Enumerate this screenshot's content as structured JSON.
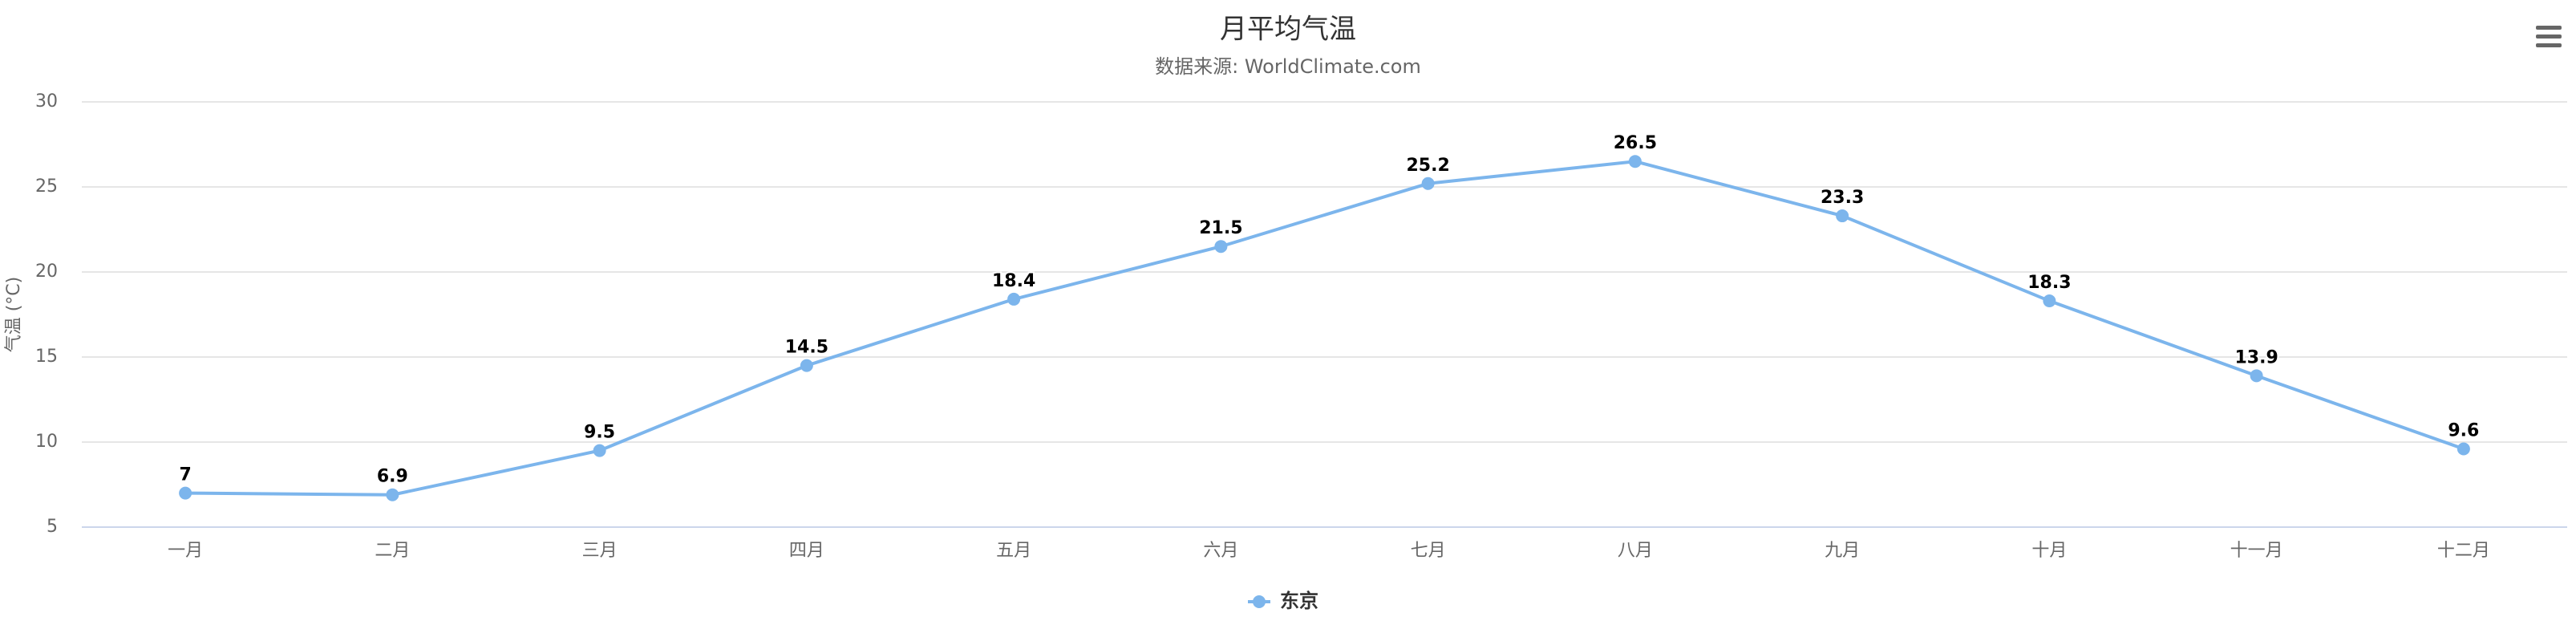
{
  "chart_data": {
    "type": "line",
    "title": "月平均气温",
    "subtitle": "数据来源: WorldClimate.com",
    "y_label": "气温 (°C)",
    "categories": [
      "一月",
      "二月",
      "三月",
      "四月",
      "五月",
      "六月",
      "七月",
      "八月",
      "九月",
      "十月",
      "十一月",
      "十二月"
    ],
    "series": [
      {
        "name": "东京",
        "color": "#7cb5ec",
        "values": [
          7,
          6.9,
          9.5,
          14.5,
          18.4,
          21.5,
          25.2,
          26.5,
          23.3,
          18.3,
          13.9,
          9.6
        ]
      }
    ],
    "ylim": [
      5,
      30
    ],
    "yticks": [
      5,
      10,
      15,
      20,
      25,
      30
    ],
    "grid": true,
    "legend": "bottom"
  }
}
